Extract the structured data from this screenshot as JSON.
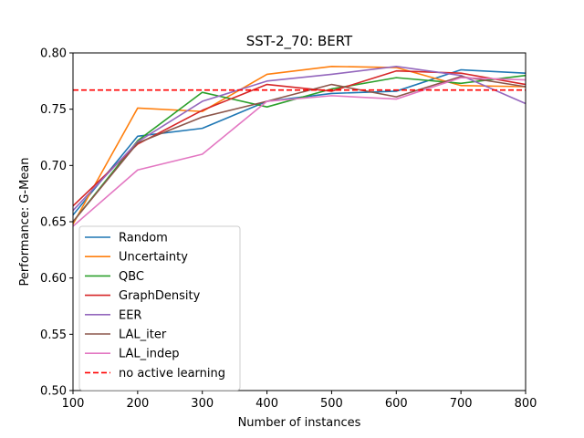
{
  "chart_data": {
    "type": "line",
    "title": "SST-2_70: BERT",
    "xlabel": "Number of instances",
    "ylabel": "Performance: G-Mean",
    "xlim": [
      100,
      800
    ],
    "ylim": [
      0.5,
      0.8
    ],
    "xticks": [
      "100",
      "200",
      "300",
      "400",
      "500",
      "600",
      "700",
      "800"
    ],
    "yticks": [
      "0.50",
      "0.55",
      "0.60",
      "0.65",
      "0.70",
      "0.75",
      "0.80"
    ],
    "grid": false,
    "legend_position": "lower-left",
    "x": [
      100,
      200,
      300,
      400,
      500,
      600,
      700,
      800
    ],
    "series": [
      {
        "name": "Random",
        "color": "#1f77b4",
        "values": [
          0.656,
          0.726,
          0.733,
          0.757,
          0.764,
          0.766,
          0.785,
          0.782
        ]
      },
      {
        "name": "Uncertainty",
        "color": "#ff7f0e",
        "values": [
          0.648,
          0.751,
          0.748,
          0.781,
          0.788,
          0.787,
          0.771,
          0.77
        ]
      },
      {
        "name": "QBC",
        "color": "#2ca02c",
        "values": [
          0.65,
          0.722,
          0.765,
          0.752,
          0.768,
          0.778,
          0.773,
          0.78
        ]
      },
      {
        "name": "GraphDensity",
        "color": "#d62728",
        "values": [
          0.664,
          0.719,
          0.749,
          0.772,
          0.766,
          0.784,
          0.782,
          0.772
        ]
      },
      {
        "name": "EER",
        "color": "#9467bd",
        "values": [
          0.66,
          0.721,
          0.757,
          0.775,
          0.781,
          0.788,
          0.78,
          0.755
        ]
      },
      {
        "name": "LAL_iter",
        "color": "#8c564b",
        "values": [
          0.65,
          0.72,
          0.743,
          0.757,
          0.772,
          0.761,
          0.779,
          0.77
        ]
      },
      {
        "name": "LAL_indep",
        "color": "#e377c2",
        "values": [
          0.646,
          0.696,
          0.71,
          0.757,
          0.762,
          0.759,
          0.778,
          0.776
        ]
      }
    ],
    "reference_line": {
      "name": "no active learning",
      "color": "#ff0000",
      "value": 0.767,
      "style": "dashed"
    }
  }
}
